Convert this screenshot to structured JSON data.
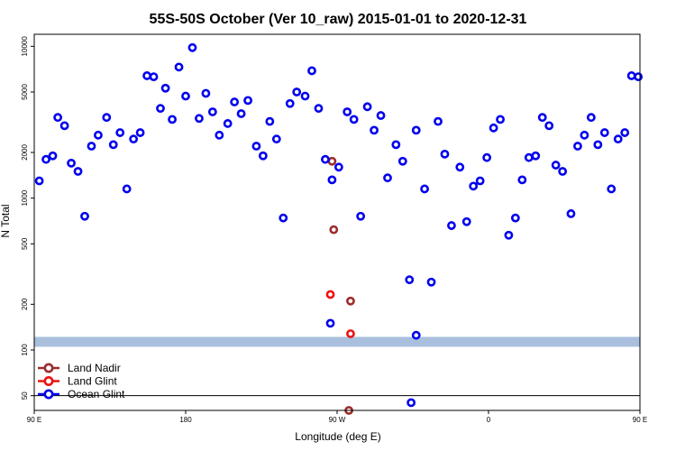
{
  "chart_data": {
    "type": "scatter",
    "title": "55S-50S October (Ver 10_raw)   2015-01-01 to 2020-12-31",
    "xlabel": "Longitude (deg E)",
    "ylabel": "N Total",
    "y_scale": "log",
    "xlim": [
      90,
      450
    ],
    "ylim": [
      40,
      12000
    ],
    "x_ticks": [
      {
        "value": 90,
        "label": "90 E"
      },
      {
        "value": 180,
        "label": "180"
      },
      {
        "value": 270,
        "label": "90 W"
      },
      {
        "value": 360,
        "label": "0"
      },
      {
        "value": 450,
        "label": "90 E"
      },
      {
        "value": 540,
        "label": "180"
      }
    ],
    "y_ticks": [
      {
        "value": 50,
        "label": "50"
      },
      {
        "value": 100,
        "label": "100"
      },
      {
        "value": 200,
        "label": "200"
      },
      {
        "value": 500,
        "label": "500"
      },
      {
        "value": 1000,
        "label": "1000"
      },
      {
        "value": 2000,
        "label": "2000"
      },
      {
        "value": 5000,
        "label": "5000"
      },
      {
        "value": 10000,
        "label": "10000"
      }
    ],
    "reference_line": 50,
    "band": {
      "from": 105,
      "to": 122,
      "color": "#a9bfdd"
    },
    "legend_position": "bottom-left",
    "series": [
      {
        "name": "Land Nadir",
        "color": "#9b2d2d",
        "points": [
          [
            267,
            1750
          ],
          [
            268,
            620
          ],
          [
            278,
            210
          ],
          [
            277,
            40
          ]
        ]
      },
      {
        "name": "Land Glint",
        "color": "#ee1111",
        "points": [
          [
            266,
            232
          ],
          [
            278,
            128
          ]
        ]
      },
      {
        "name": "Ocean Glint",
        "color": "#0000ee",
        "points": [
          [
            93,
            1300
          ],
          [
            97,
            1800
          ],
          [
            101,
            1900
          ],
          [
            104,
            3400
          ],
          [
            108,
            3000
          ],
          [
            112,
            1700
          ],
          [
            116,
            1500
          ],
          [
            120,
            760
          ],
          [
            124,
            2200
          ],
          [
            128,
            2600
          ],
          [
            133,
            3400
          ],
          [
            137,
            2250
          ],
          [
            141,
            2700
          ],
          [
            145,
            1150
          ],
          [
            149,
            2450
          ],
          [
            153,
            2700
          ],
          [
            157,
            6400
          ],
          [
            161,
            6300
          ],
          [
            165,
            3900
          ],
          [
            168,
            5300
          ],
          [
            172,
            3300
          ],
          [
            176,
            7300
          ],
          [
            180,
            4700
          ],
          [
            184,
            9800
          ],
          [
            188,
            3350
          ],
          [
            192,
            4900
          ],
          [
            196,
            3700
          ],
          [
            200,
            2600
          ],
          [
            205,
            3100
          ],
          [
            209,
            4300
          ],
          [
            213,
            3600
          ],
          [
            217,
            4400
          ],
          [
            222,
            2200
          ],
          [
            226,
            1900
          ],
          [
            230,
            3200
          ],
          [
            234,
            2450
          ],
          [
            238,
            740
          ],
          [
            242,
            4200
          ],
          [
            246,
            5000
          ],
          [
            251,
            4700
          ],
          [
            255,
            6900
          ],
          [
            259,
            3900
          ],
          [
            263,
            1800
          ],
          [
            267,
            1320
          ],
          [
            271,
            1600
          ],
          [
            276,
            3700
          ],
          [
            280,
            3300
          ],
          [
            284,
            760
          ],
          [
            288,
            4000
          ],
          [
            292,
            2800
          ],
          [
            296,
            3500
          ],
          [
            300,
            1360
          ],
          [
            305,
            2250
          ],
          [
            309,
            1750
          ],
          [
            313,
            290
          ],
          [
            317,
            2800
          ],
          [
            322,
            1150
          ],
          [
            326,
            280
          ],
          [
            330,
            3200
          ],
          [
            334,
            1950
          ],
          [
            338,
            660
          ],
          [
            343,
            1600
          ],
          [
            347,
            700
          ],
          [
            351,
            1200
          ],
          [
            355,
            1300
          ],
          [
            359,
            1850
          ],
          [
            363,
            2900
          ],
          [
            367,
            3300
          ],
          [
            372,
            570
          ],
          [
            376,
            740
          ],
          [
            380,
            1320
          ],
          [
            384,
            1850
          ],
          [
            388,
            1900
          ],
          [
            392,
            3400
          ],
          [
            396,
            3000
          ],
          [
            400,
            1650
          ],
          [
            404,
            1500
          ],
          [
            409,
            790
          ],
          [
            413,
            2200
          ],
          [
            417,
            2600
          ],
          [
            421,
            3400
          ],
          [
            425,
            2250
          ],
          [
            429,
            2700
          ],
          [
            433,
            1150
          ],
          [
            437,
            2450
          ],
          [
            441,
            2700
          ],
          [
            445,
            6400
          ],
          [
            449,
            6300
          ],
          [
            314,
            45
          ],
          [
            317,
            125
          ],
          [
            266,
            150
          ]
        ]
      }
    ]
  }
}
